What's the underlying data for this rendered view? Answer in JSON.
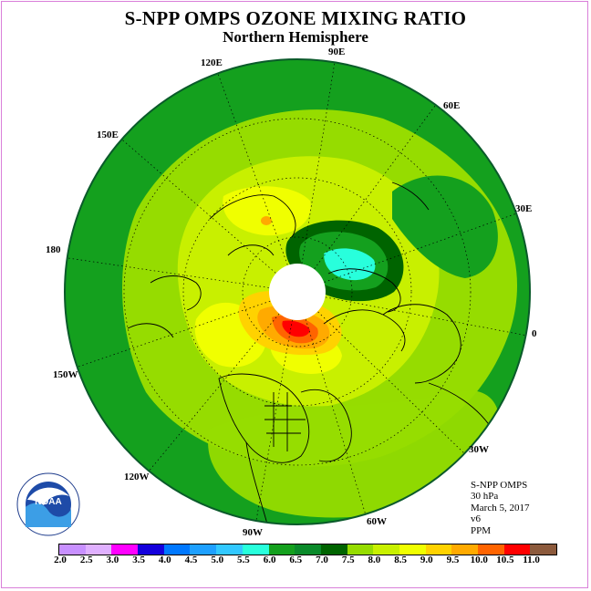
{
  "title": "S-NPP OMPS OZONE MIXING RATIO",
  "subtitle": "Northern Hemisphere",
  "longitude_labels": [
    "90E",
    "60E",
    "30E",
    "0",
    "30W",
    "60W",
    "90W",
    "120W",
    "150W",
    "180",
    "150E",
    "120E"
  ],
  "info": {
    "line1": "S-NPP OMPS",
    "line2": "30 hPa",
    "line3": "March 5, 2017",
    "line4": "v6",
    "line5": "PPM"
  },
  "colorbar": {
    "ticks": [
      "2.0",
      "2.5",
      "3.0",
      "3.5",
      "4.0",
      "4.5",
      "5.0",
      "5.5",
      "6.0",
      "6.5",
      "7.0",
      "7.5",
      "8.0",
      "8.5",
      "9.0",
      "9.5",
      "10.0",
      "10.5",
      "11.0"
    ],
    "colors": [
      "#c890ff",
      "#e0b0ff",
      "#ff00ff",
      "#1400dc",
      "#0078ff",
      "#1ea0ff",
      "#32c8ff",
      "#28ffdc",
      "#14a01e",
      "#0a8a2a",
      "#006400",
      "#96dc00",
      "#c8f000",
      "#f0ff00",
      "#ffd200",
      "#ffaa00",
      "#ff6400",
      "#ff0000",
      "#8c5a3c"
    ]
  },
  "logo_text": "NOAA"
}
